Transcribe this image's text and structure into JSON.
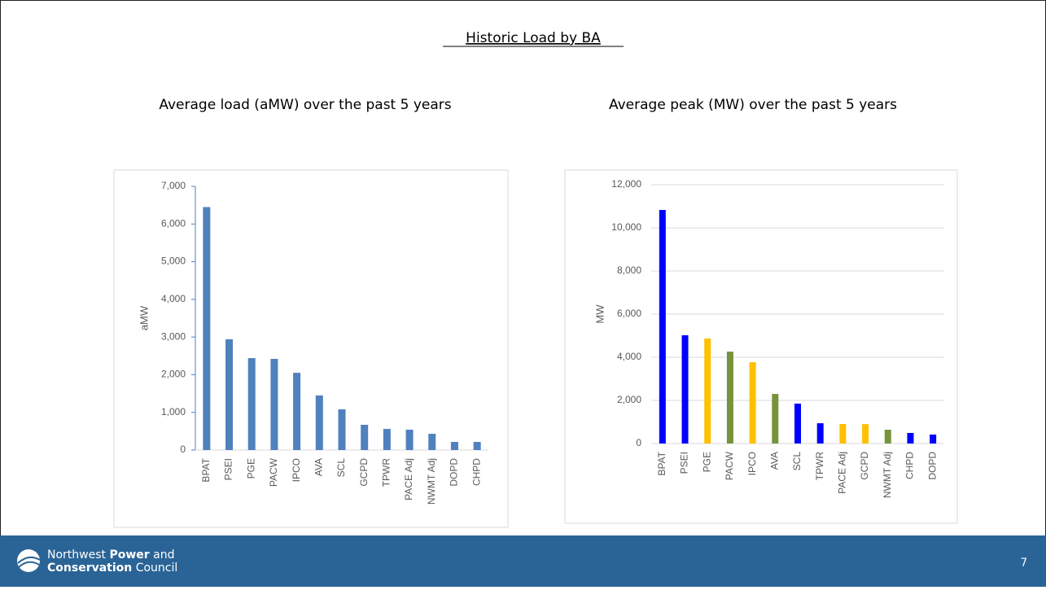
{
  "slide": {
    "title": "Historic Load by BA",
    "footer": {
      "line1": [
        "Northwest",
        "Power",
        "and"
      ],
      "line2": [
        "Conservation",
        "Council"
      ],
      "page_number": 7
    }
  },
  "chart_data": [
    {
      "type": "bar",
      "title": "Average load (aMW) over the past 5 years",
      "y_label": "aMW",
      "categories": [
        "BPAT",
        "PSEI",
        "PGE",
        "PACW",
        "IPCO",
        "AVA",
        "SCL",
        "GCPD",
        "TPWR",
        "PACE Adj",
        "NWMT Adj",
        "DOPD",
        "CHPD"
      ],
      "series": [
        {
          "colors": [
            "#4f81bd"
          ],
          "values": [
            6450,
            2940,
            2440,
            2420,
            2050,
            1450,
            1080,
            670,
            560,
            540,
            430,
            215,
            215
          ]
        }
      ],
      "ylim": [
        0,
        7000
      ],
      "yticks": [
        0,
        {
          "value": 1000,
          "label": "1,000"
        },
        {
          "value": 2000,
          "label": "2,000"
        },
        {
          "value": 3000,
          "label": "3,000"
        },
        {
          "value": 4000,
          "label": "4,000"
        },
        {
          "value": 5000,
          "label": "5,000"
        },
        {
          "value": 6000,
          "label": "6,000"
        },
        {
          "value": 7000,
          "label": "7,000"
        }
      ],
      "grid": false
    },
    {
      "type": "bar",
      "title": "Average peak (MW) over the past 5 years",
      "y_label": "MW",
      "categories": [
        "BPAT",
        "PSEI",
        "PGE",
        "PACW",
        "IPCO",
        "AVA",
        "SCL",
        "TPWR",
        "PACE Adj",
        "GCPD",
        "NWMT Adj",
        "CHPD",
        "DOPD"
      ],
      "series": [
        {
          "colors": [
            "#0000ff",
            "#0000ff",
            "#ffc000",
            "#77933c",
            "#ffc000",
            "#77933c",
            "#0000ff",
            "#0000ff",
            "#ffc000",
            "#ffc000",
            "#77933c",
            "#0000ff",
            "#0000ff"
          ],
          "values": [
            10830,
            5020,
            4870,
            4260,
            3770,
            2300,
            1850,
            940,
            905,
            900,
            640,
            490,
            415
          ]
        }
      ],
      "ylim": [
        0,
        12000
      ],
      "yticks": [
        0,
        {
          "value": 2000,
          "label": "2,000"
        },
        {
          "value": 4000,
          "label": "4,000"
        },
        {
          "value": 6000,
          "label": "6,000"
        },
        {
          "value": 8000,
          "label": "8,000"
        },
        {
          "value": 10000,
          "label": "10,000"
        },
        {
          "value": 12000,
          "label": "12,000"
        }
      ],
      "grid": true
    }
  ]
}
